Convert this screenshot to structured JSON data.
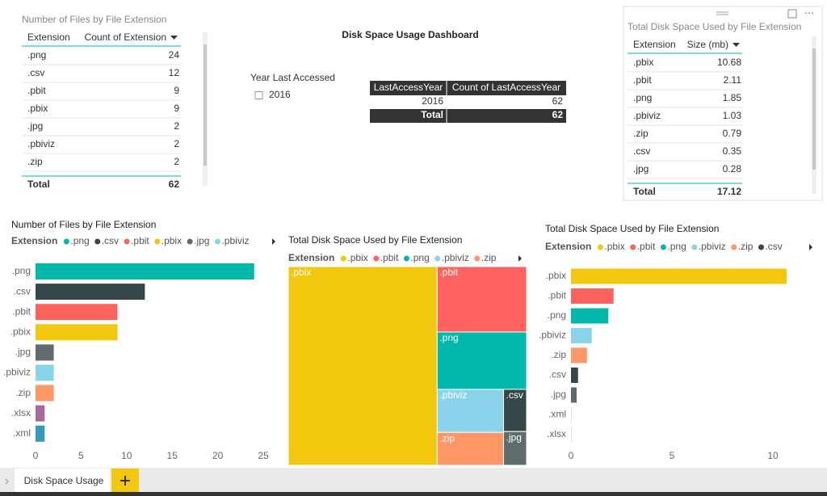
{
  "title": "Disk Space Usage Dashboard",
  "tables": [
    {
      "title": "Number of Files by File Extension",
      "columns": [
        "Extension",
        "Count of Extension"
      ],
      "rows": [
        [
          ".png",
          24
        ],
        [
          ".csv",
          12
        ],
        [
          ".pbit",
          9
        ],
        [
          ".pbix",
          9
        ],
        [
          ".jpg",
          2
        ],
        [
          ".pbiviz",
          2
        ],
        [
          ".zip",
          2
        ]
      ],
      "total": [
        "Total",
        62
      ]
    },
    {
      "title": "Total Disk Space Used by File Extension",
      "columns": [
        "Extension",
        "Size (mb)"
      ],
      "rows": [
        [
          ".pbix",
          10.68
        ],
        [
          ".pbit",
          2.11
        ],
        [
          ".png",
          1.85
        ],
        [
          ".pbiviz",
          1.03
        ],
        [
          ".zip",
          0.79
        ],
        [
          ".csv",
          0.35
        ],
        [
          ".jpg",
          0.28
        ]
      ],
      "total": [
        "Total",
        17.12
      ]
    },
    {
      "columns": [
        "LastAccessYear",
        "Count of LastAccessYear"
      ],
      "rows": [
        [
          2016,
          62
        ]
      ],
      "total": [
        "Total",
        62
      ]
    }
  ],
  "slicer": {
    "title": "Year Last Accessed",
    "items": [
      2016
    ]
  },
  "chart_data": [
    {
      "type": "bar",
      "horizontal": true,
      "title": "Number of Files by File Extension",
      "legend_title": "Extension",
      "categories": [
        ".png",
        ".csv",
        ".pbit",
        ".pbix",
        ".jpg",
        ".pbiviz",
        ".zip",
        ".xlsx",
        ".xml"
      ],
      "values": [
        24,
        12,
        9,
        9,
        2,
        2,
        2,
        1,
        1
      ],
      "colors": [
        "#01B8AA",
        "#374649",
        "#FD625E",
        "#F2C80F",
        "#5F6B6D",
        "#8AD4EB",
        "#FE9666",
        "#A66999",
        "#3599B8"
      ],
      "xlim": [
        0,
        25
      ],
      "xticks": [
        0,
        5,
        10,
        15,
        20,
        25
      ]
    },
    {
      "type": "treemap",
      "title": "Total Disk Space Used by File Extension",
      "legend_title": "Extension",
      "categories": [
        ".pbix",
        ".pbit",
        ".png",
        ".pbiviz",
        ".zip",
        ".csv",
        ".jpg"
      ],
      "values": [
        10.68,
        2.11,
        1.85,
        1.03,
        0.79,
        0.35,
        0.28
      ],
      "colors": [
        "#F2C80F",
        "#FD625E",
        "#01B8AA",
        "#8AD4EB",
        "#FE9666",
        "#374649",
        "#5F6B6D"
      ]
    },
    {
      "type": "bar",
      "horizontal": true,
      "title": "Total Disk Space Used by File Extension",
      "legend_title": "Extension",
      "categories": [
        ".pbix",
        ".pbit",
        ".png",
        ".pbiviz",
        ".zip",
        ".csv",
        ".jpg",
        ".xml",
        ".xlsx"
      ],
      "values": [
        10.68,
        2.11,
        1.85,
        1.03,
        0.79,
        0.35,
        0.28,
        0.01,
        0.01
      ],
      "colors": [
        "#F2C80F",
        "#FD625E",
        "#01B8AA",
        "#8AD4EB",
        "#FE9666",
        "#374649",
        "#5F6B6D",
        "#3599B8",
        "#A66999"
      ],
      "xlim": [
        0,
        11
      ],
      "xticks": [
        0,
        5,
        10
      ]
    }
  ],
  "tabs": [
    "Disk Space Usage"
  ]
}
